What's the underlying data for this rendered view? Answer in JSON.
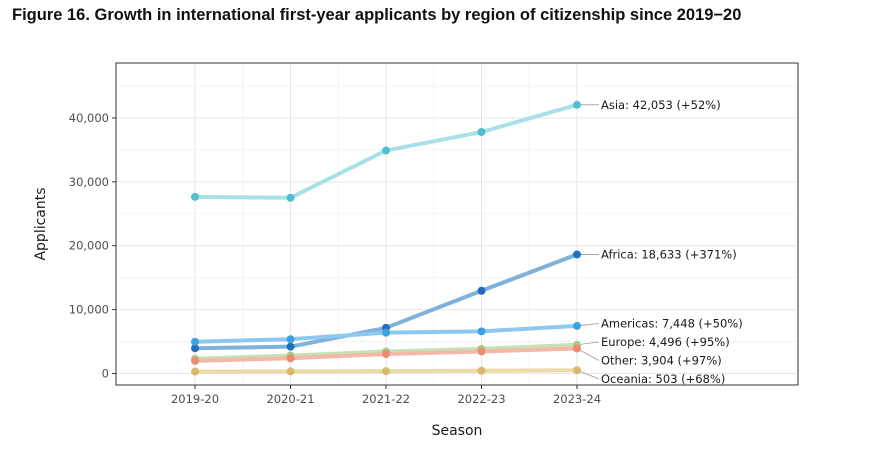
{
  "figure_title": "Figure 16. Growth in international first-year applicants by region of citizenship since 2019−20",
  "chart_data": {
    "type": "line",
    "title": "Figure 16. Growth in international first-year applicants by region of citizenship since 2019−20",
    "xlabel": "Season",
    "ylabel": "Applicants",
    "categories": [
      "2019-20",
      "2020-21",
      "2021-22",
      "2022-23",
      "2023-24"
    ],
    "ylim": [
      -1800,
      48600
    ],
    "yticks": [
      0,
      10000,
      20000,
      30000,
      40000
    ],
    "ytick_labels": [
      "0",
      "10,000",
      "20,000",
      "30,000",
      "40,000"
    ],
    "grid": true,
    "series": [
      {
        "name": "Asia",
        "label": "Asia: 42,053 (+52%)",
        "values": [
          27650,
          27500,
          34900,
          37800,
          42053
        ],
        "line_color": "#a8e0e8",
        "point_color": "#4fbfd0"
      },
      {
        "name": "Africa",
        "label": "Africa: 18,633 (+371%)",
        "values": [
          3960,
          4200,
          7150,
          12950,
          18633
        ],
        "line_color": "#7fb2db",
        "point_color": "#1f6fbe"
      },
      {
        "name": "Americas",
        "label": "Americas: 7,448 (+50%)",
        "values": [
          4970,
          5370,
          6400,
          6600,
          7448
        ],
        "line_color": "#8fc8ee",
        "point_color": "#3aa3e3"
      },
      {
        "name": "Europe",
        "label": "Europe: 4,496 (+95%)",
        "values": [
          2310,
          2800,
          3450,
          3850,
          4496
        ],
        "line_color": "#c6e2b5",
        "point_color": "#9fd08a"
      },
      {
        "name": "Other",
        "label": "Other: 3,904 (+97%)",
        "values": [
          1980,
          2380,
          3050,
          3450,
          3904
        ],
        "line_color": "#f3b8a8",
        "point_color": "#ee8a72"
      },
      {
        "name": "Oceania",
        "label": "Oceania: 503 (+68%)",
        "values": [
          300,
          330,
          380,
          430,
          503
        ],
        "line_color": "#ecd9a8",
        "point_color": "#d9b96a"
      }
    ]
  }
}
